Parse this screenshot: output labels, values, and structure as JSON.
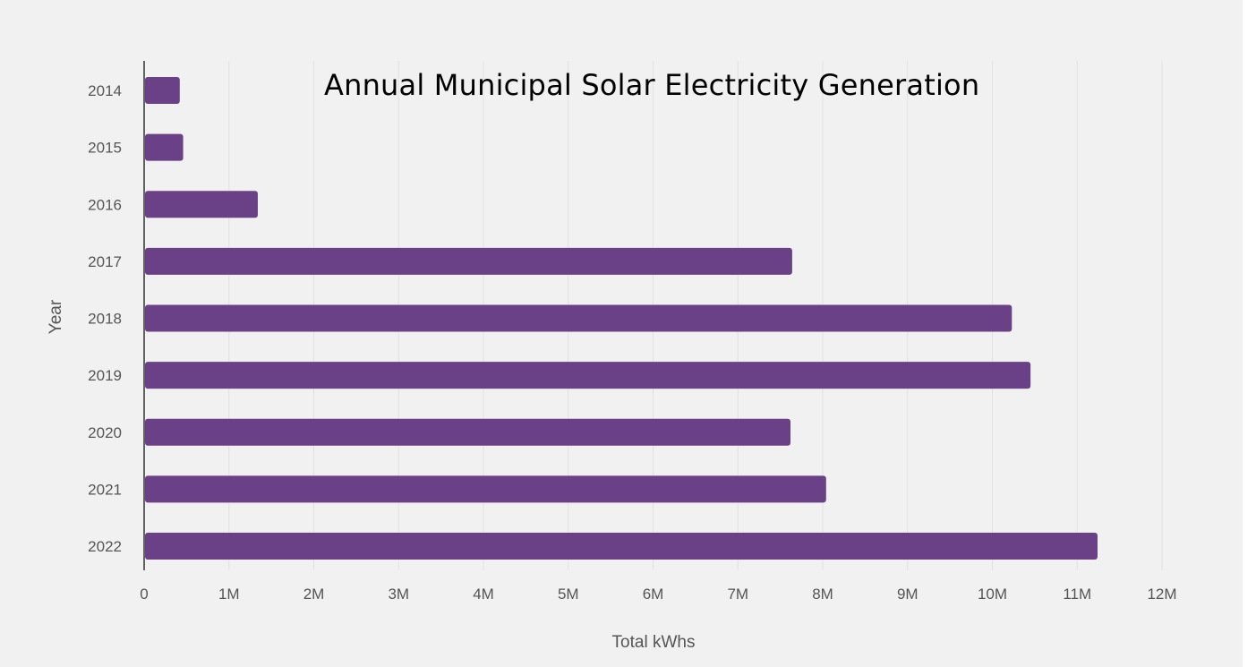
{
  "chart_data": {
    "type": "bar",
    "orientation": "horizontal",
    "title": "Annual Municipal Solar Electricity Generation",
    "xlabel": "Total kWhs",
    "ylabel": "Year",
    "categories": [
      "2014",
      "2015",
      "2016",
      "2017",
      "2018",
      "2019",
      "2020",
      "2021",
      "2022"
    ],
    "values": [
      420000,
      460000,
      1340000,
      7640000,
      10230000,
      10450000,
      7620000,
      8040000,
      11240000
    ],
    "xlim": [
      0,
      12000000
    ],
    "x_ticks": [
      {
        "value": 0,
        "label": "0"
      },
      {
        "value": 1000000,
        "label": "1M"
      },
      {
        "value": 2000000,
        "label": "2M"
      },
      {
        "value": 3000000,
        "label": "3M"
      },
      {
        "value": 4000000,
        "label": "4M"
      },
      {
        "value": 5000000,
        "label": "5M"
      },
      {
        "value": 6000000,
        "label": "6M"
      },
      {
        "value": 7000000,
        "label": "7M"
      },
      {
        "value": 8000000,
        "label": "8M"
      },
      {
        "value": 9000000,
        "label": "9M"
      },
      {
        "value": 10000000,
        "label": "10M"
      },
      {
        "value": 11000000,
        "label": "11M"
      },
      {
        "value": 12000000,
        "label": "12M"
      }
    ],
    "grid": "vertical",
    "bar_color": "#6a4187"
  }
}
